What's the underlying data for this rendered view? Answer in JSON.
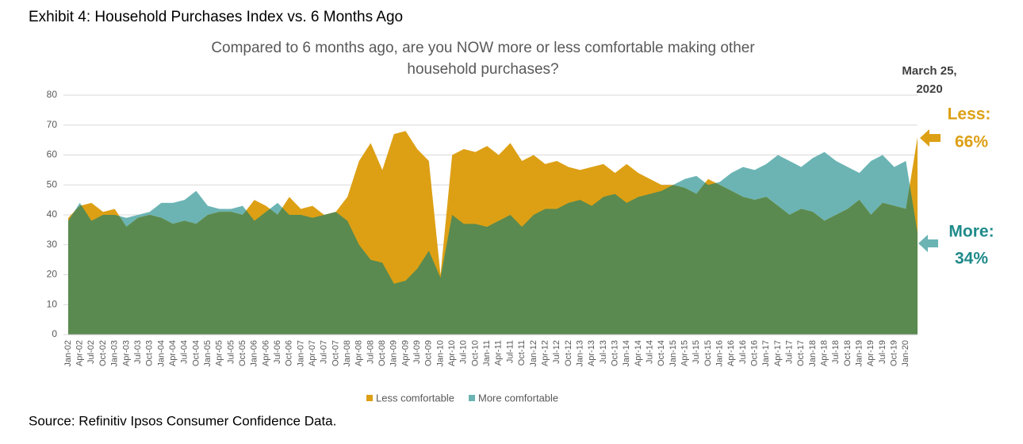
{
  "heading": "Exhibit 4: Household Purchases Index vs. 6 Months Ago",
  "source": "Source: Refinitiv Ipsos Consumer Confidence Data.",
  "chart_data": {
    "type": "area",
    "title_lines": [
      "Compared to 6 months ago, are you NOW more or less comfortable making other",
      "household purchases?"
    ],
    "annotations": {
      "date_lines": [
        "March 25,",
        "2020"
      ],
      "less_lines": [
        "Less:",
        "66%"
      ],
      "more_lines": [
        "More:",
        "34%"
      ]
    },
    "categories": [
      "Jan-02",
      "Apr-02",
      "Jul-02",
      "Oct-02",
      "Jan-03",
      "Apr-03",
      "Jul-03",
      "Oct-03",
      "Jan-04",
      "Apr-04",
      "Jul-04",
      "Oct-04",
      "Jan-05",
      "Apr-05",
      "Jul-05",
      "Oct-05",
      "Jan-06",
      "Apr-06",
      "Jul-06",
      "Oct-06",
      "Jan-07",
      "Apr-07",
      "Jul-07",
      "Oct-07",
      "Jan-08",
      "Apr-08",
      "Jul-08",
      "Oct-08",
      "Jan-09",
      "Apr-09",
      "Jul-09",
      "Oct-09",
      "Jan-10",
      "Apr-10",
      "Jul-10",
      "Oct-10",
      "Jan-11",
      "Apr-11",
      "Jul-11",
      "Oct-11",
      "Jan-12",
      "Apr-12",
      "Jul-12",
      "Oct-12",
      "Jan-13",
      "Apr-13",
      "Jul-13",
      "Oct-13",
      "Jan-14",
      "Apr-14",
      "Jul-14",
      "Oct-14",
      "Jan-15",
      "Apr-15",
      "Jul-15",
      "Oct-15",
      "Jan-16",
      "Apr-16",
      "Jul-16",
      "Oct-16",
      "Jan-17",
      "Apr-17",
      "Jul-17",
      "Oct-17",
      "Jan-18",
      "Apr-18",
      "Jul-18",
      "Oct-18",
      "Jan-19",
      "Apr-19",
      "Jul-19",
      "Oct-19",
      "Jan-20",
      null
    ],
    "series": [
      {
        "name": "Less comfortable",
        "color": "#dda015",
        "values": [
          39,
          43,
          44,
          41,
          42,
          36,
          39,
          40,
          39,
          37,
          38,
          37,
          40,
          41,
          41,
          40,
          45,
          43,
          40,
          46,
          42,
          43,
          40,
          41,
          46,
          58,
          64,
          55,
          67,
          68,
          62,
          58,
          20,
          60,
          62,
          61,
          63,
          60,
          64,
          58,
          60,
          57,
          58,
          56,
          55,
          56,
          57,
          54,
          57,
          54,
          52,
          50,
          50,
          49,
          47,
          52,
          50,
          48,
          46,
          45,
          46,
          43,
          40,
          42,
          41,
          38,
          40,
          42,
          45,
          40,
          44,
          43,
          42,
          66
        ]
      },
      {
        "name": "More comfortable",
        "color": "#6cb4b4",
        "values": [
          38,
          44,
          38,
          40,
          40,
          39,
          40,
          41,
          44,
          44,
          45,
          48,
          43,
          42,
          42,
          43,
          38,
          41,
          44,
          40,
          40,
          39,
          40,
          41,
          38,
          30,
          25,
          24,
          17,
          18,
          22,
          28,
          19,
          40,
          37,
          37,
          36,
          38,
          40,
          36,
          40,
          42,
          42,
          44,
          45,
          43,
          46,
          47,
          44,
          46,
          47,
          48,
          50,
          52,
          53,
          50,
          51,
          54,
          56,
          55,
          57,
          60,
          58,
          56,
          59,
          61,
          58,
          56,
          54,
          58,
          60,
          56,
          58,
          34
        ]
      }
    ],
    "overlap_color": "#5a8a4f",
    "ylim": [
      0,
      80
    ],
    "yticks": [
      0,
      10,
      20,
      30,
      40,
      50,
      60,
      70,
      80
    ],
    "grid": true
  }
}
